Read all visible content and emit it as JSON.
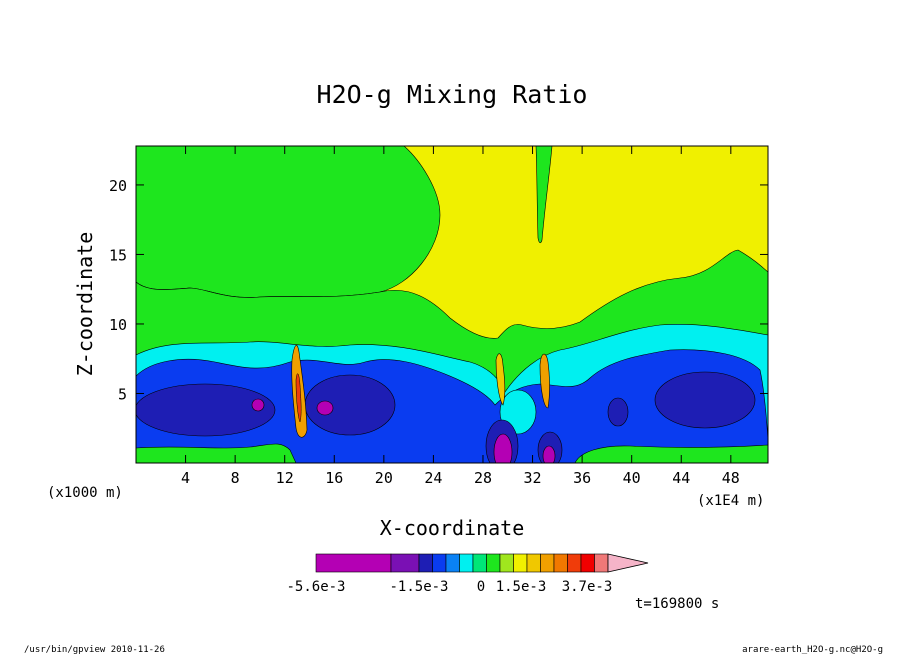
{
  "chart_data": {
    "type": "heatmap",
    "title": "H2O-g Mixing Ratio",
    "xlabel": "X-coordinate",
    "ylabel": "Z-coordinate",
    "x_unit_left": "(x1000 m)",
    "x_unit_right": "(x1E4 m)",
    "x_ticks": [
      "4",
      "8",
      "12",
      "16",
      "20",
      "24",
      "28",
      "32",
      "36",
      "40",
      "44",
      "48"
    ],
    "y_ticks": [
      "5",
      "10",
      "15",
      "20"
    ],
    "xlim": [
      0,
      51
    ],
    "ylim": [
      0,
      22.8
    ],
    "time_label": "t=169800 s",
    "colorbar": {
      "colors": [
        "#b400b4",
        "#7a10b4",
        "#1e1eb4",
        "#0a3cf0",
        "#0a82f5",
        "#00f0f0",
        "#00e678",
        "#1ee61e",
        "#a0e61e",
        "#f0f000",
        "#f0c800",
        "#f0a000",
        "#f07800",
        "#f03c0a",
        "#f00000",
        "#f07878",
        "#f5b4c8"
      ],
      "labels": [
        "-5.6e-3",
        "-1.5e-3",
        "0",
        "1.5e-3",
        "3.7e-3"
      ]
    }
  },
  "footer": {
    "left": "/usr/bin/gpview  2010-11-26",
    "right": "arare-earth_H2O-g.nc@H2O-g"
  },
  "colors": {
    "magenta": "#b400b4",
    "purple": "#7a10b4",
    "navy": "#1e1eb4",
    "blue": "#0a3cf0",
    "cyan": "#00f0f0",
    "green": "#1ee61e",
    "yellow": "#f0f000",
    "orange": "#f07800"
  }
}
